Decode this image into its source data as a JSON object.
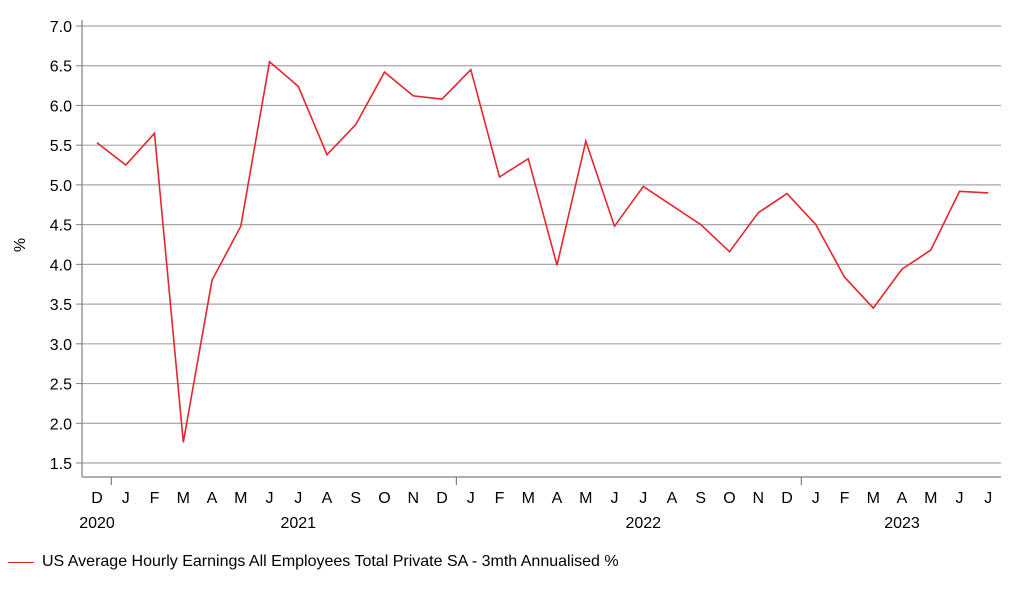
{
  "chart_data": {
    "type": "line",
    "title": "",
    "ylabel": "%",
    "xlabel": "",
    "ylim": [
      1.5,
      7.0
    ],
    "ytick_step": 0.5,
    "grid": true,
    "legend_position": "bottom-left",
    "x": [
      "2020-12",
      "2021-01",
      "2021-02",
      "2021-03",
      "2021-04",
      "2021-05",
      "2021-06",
      "2021-07",
      "2021-08",
      "2021-09",
      "2021-10",
      "2021-11",
      "2021-12",
      "2022-01",
      "2022-02",
      "2022-03",
      "2022-04",
      "2022-05",
      "2022-06",
      "2022-07",
      "2022-08",
      "2022-09",
      "2022-10",
      "2022-11",
      "2022-12",
      "2023-01",
      "2023-02",
      "2023-03",
      "2023-04",
      "2023-05",
      "2023-06",
      "2023-07"
    ],
    "month_labels": [
      "D",
      "J",
      "F",
      "M",
      "A",
      "M",
      "J",
      "J",
      "A",
      "S",
      "O",
      "N",
      "D",
      "J",
      "F",
      "M",
      "A",
      "M",
      "J",
      "J",
      "A",
      "S",
      "O",
      "N",
      "D",
      "J",
      "F",
      "M",
      "A",
      "M",
      "J",
      "J"
    ],
    "year_labels": [
      {
        "label": "2020",
        "x": "2020-12"
      },
      {
        "label": "2021",
        "x": "2021-07"
      },
      {
        "label": "2022",
        "x": "2022-07"
      },
      {
        "label": "2023",
        "x": "2023-04"
      }
    ],
    "year_dividers": [
      "2020-12",
      "2021-12",
      "2022-12"
    ],
    "series": [
      {
        "name": "US Average Hourly Earnings All Employees Total Private SA - 3mth Annualised %",
        "color": "#e4262d",
        "values": [
          5.53,
          5.25,
          5.65,
          1.76,
          3.8,
          4.48,
          6.55,
          6.24,
          5.38,
          5.76,
          6.42,
          6.12,
          6.08,
          6.45,
          5.1,
          5.33,
          3.99,
          5.55,
          4.48,
          4.98,
          4.74,
          4.5,
          4.16,
          4.65,
          4.89,
          4.5,
          3.84,
          3.45,
          3.94,
          4.18,
          4.92,
          4.9
        ]
      }
    ]
  },
  "legend": {
    "label": "US Average Hourly Earnings All Employees Total Private SA - 3mth Annualised %"
  }
}
